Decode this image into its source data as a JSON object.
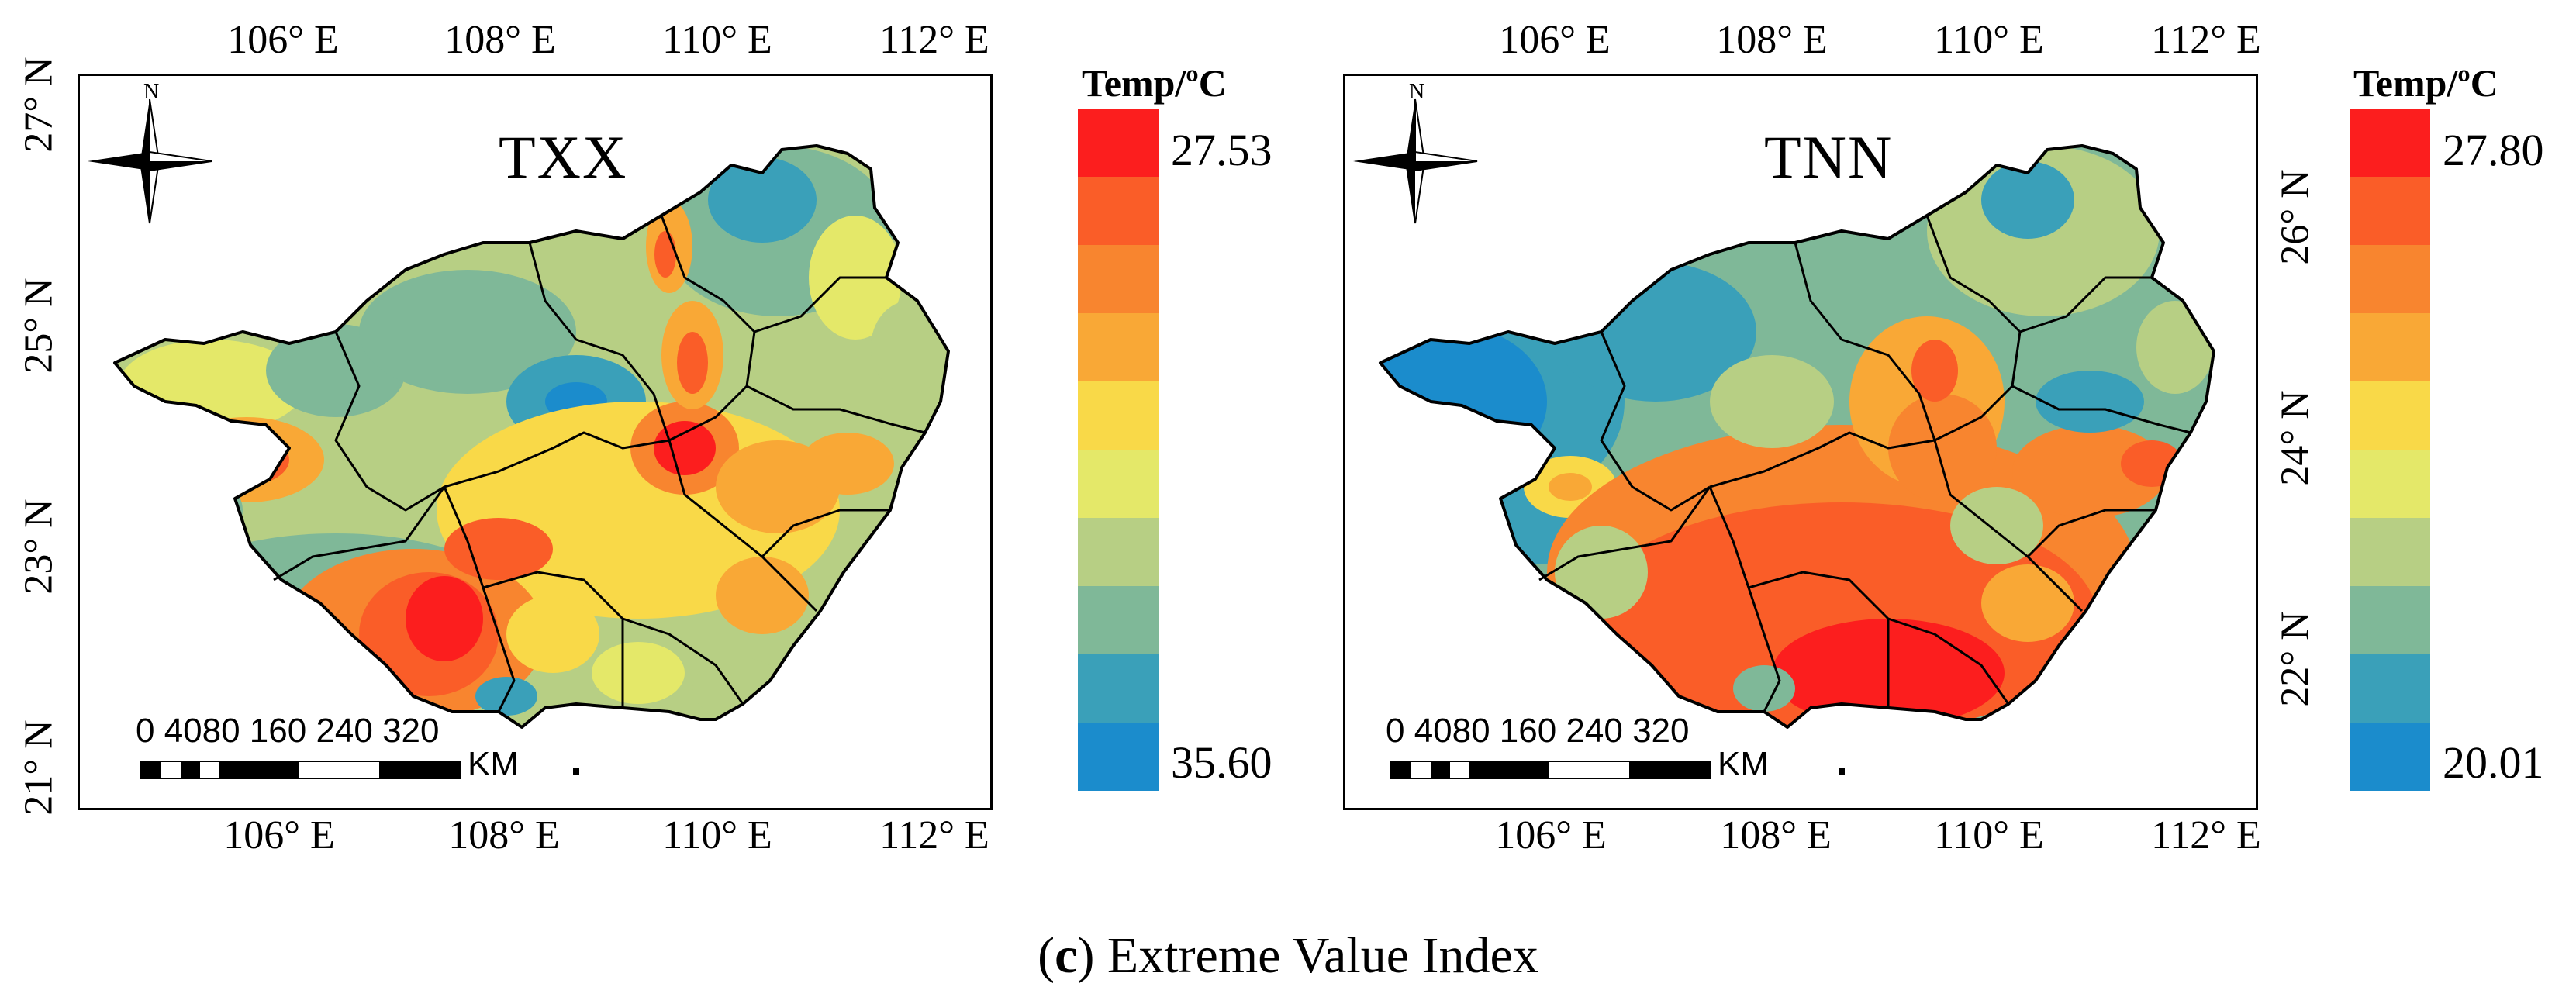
{
  "legend_colors": [
    "#fc1e1e",
    "#fa5d28",
    "#f8852f",
    "#f9a836",
    "#f9d948",
    "#e4e869",
    "#b7cf84",
    "#7fb898",
    "#3aa0b9",
    "#1b8ccc"
  ],
  "lon_ticks": [
    "106° E",
    "108° E",
    "110° E",
    "112° E"
  ],
  "lat_ticks_left": [
    "27° N",
    "25° N",
    "23° N",
    "21° N"
  ],
  "lat_ticks_right": [
    "26° N",
    "24° N",
    "22° N"
  ],
  "scale_bar": {
    "labels": "0 4080    160   240   320",
    "unit": "KM"
  },
  "north_arrow_label": "N",
  "panels": [
    {
      "title": "TXX",
      "legend_title": "Temp/ºC",
      "legend_top": "27.53",
      "legend_bottom": "35.60"
    },
    {
      "title": "TNN",
      "legend_title": "Temp/ºC",
      "legend_top": "27.80",
      "legend_bottom": "20.01"
    }
  ],
  "caption": {
    "letter": "c",
    "text": "Extreme Value Index"
  }
}
